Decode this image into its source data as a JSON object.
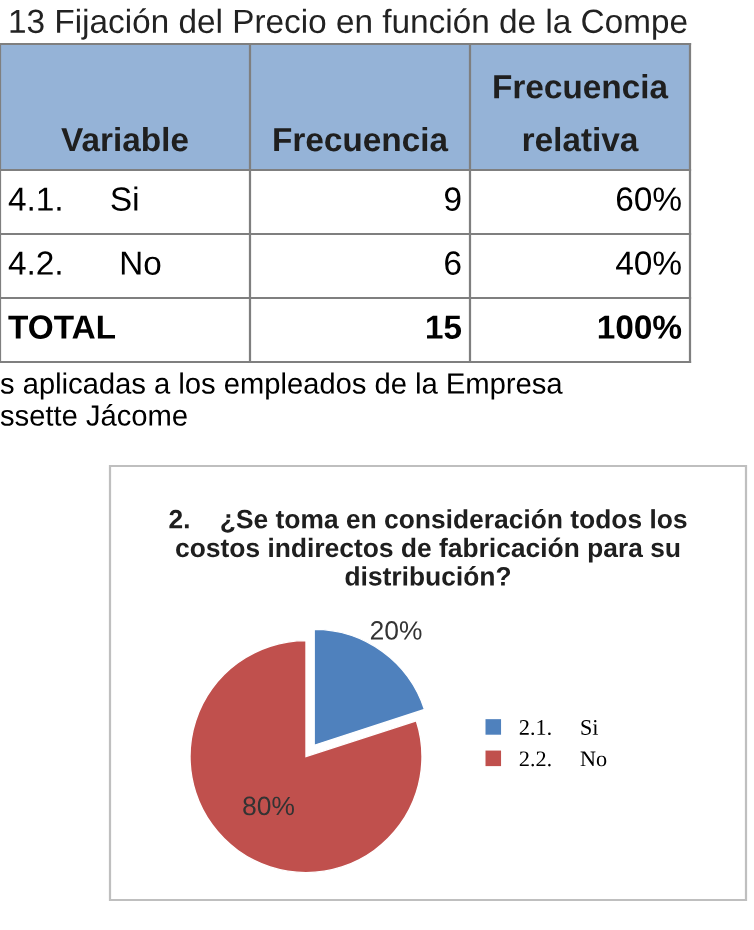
{
  "chart_data": [
    {
      "type": "other",
      "title": "13 Fijación del Precio en función de la Compe",
      "categories": [
        "Variable",
        "Frecuencia",
        "Frecuencia\nrelativa"
      ],
      "y_categories": [
        "4.1.     Si",
        "4.2.      No",
        "TOTAL"
      ],
      "cells": [
        [
          "9",
          "60%"
        ],
        [
          "6",
          "40%"
        ],
        [
          "15",
          "100%"
        ]
      ],
      "annotations": [
        "s aplicadas a los empleados de la Empresa",
        "ssette Jácome"
      ]
    },
    {
      "type": "pie",
      "title": "2.    ¿Se toma en consideración todos los costos indirectos de fabricación para su distribución?",
      "categories": [
        "2.1.     Si",
        "2.2.     No"
      ],
      "values": [
        20,
        80
      ],
      "colors": [
        "#4f81bd",
        "#c0504d"
      ],
      "value_labels": [
        "20%",
        "80%"
      ],
      "legend": "right"
    }
  ]
}
